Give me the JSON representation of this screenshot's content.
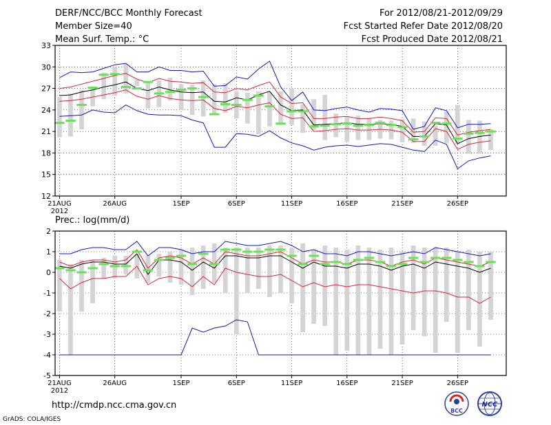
{
  "header": {
    "title": "DERF/NCC/BCC Monthly Forecast",
    "member_size": "Member Size=40",
    "variable": "Mean Surf. Temp.: °C",
    "period": "For 2012/08/21-2012/09/29",
    "started": "Fcst Started Refer Date 2012/08/20",
    "produced": "Fcst Produced Date 2012/08/21"
  },
  "footer": {
    "url": "http://cmdp.ncc.cma.gov.cn",
    "credit": "GrADS: COLA/IGES",
    "logo_bcc": "BCC",
    "logo_ncc": "NCC"
  },
  "colors": {
    "envelope": "#1010d0",
    "spread": "#e02030",
    "mean": "#000000",
    "box": "#d4d4d4",
    "median": "#66e255"
  },
  "chart_data": [
    {
      "type": "box",
      "title": "Mean Surf. Temp.: °C",
      "ylim": [
        12,
        33
      ],
      "yticks": [
        12,
        15,
        18,
        21,
        24,
        27,
        30,
        33
      ],
      "x_tick_labels": [
        "21AUG",
        "26AUG",
        "1SEP",
        "6SEP",
        "11SEP",
        "16SEP",
        "21SEP",
        "26SEP"
      ],
      "x_tick_days": [
        0,
        5,
        11,
        16,
        21,
        26,
        31,
        36
      ],
      "x_sublabel": "2012",
      "days": 40,
      "box_low": [
        20.2,
        20.3,
        21.3,
        24.5,
        25.5,
        26.0,
        26.3,
        27.3,
        24.2,
        24.4,
        25.3,
        24.0,
        23.3,
        23.1,
        23.3,
        23.6,
        22.8,
        22.1,
        20.6,
        21.7,
        21.9,
        21.9,
        20.8,
        21.2,
        19.8,
        20.2,
        19.6,
        19.8,
        19.8,
        20.0,
        19.9,
        19.5,
        19.4,
        19.0,
        19.0,
        19.4,
        19.2,
        17.9,
        17.9,
        18.4
      ],
      "box_high": [
        25.8,
        26.3,
        26.8,
        27.2,
        29.2,
        30.0,
        30.4,
        28.2,
        27.8,
        28.1,
        28.5,
        27.6,
        27.5,
        28.1,
        27.6,
        27.7,
        26.6,
        26.4,
        26.6,
        26.5,
        26.6,
        27.0,
        24.8,
        25.5,
        26.1,
        23.5,
        23.1,
        23.2,
        22.9,
        22.6,
        22.5,
        22.7,
        22.8,
        22.4,
        21.8,
        23.8,
        24.7,
        22.6,
        22.5,
        21.3
      ],
      "median": [
        22.2,
        22.5,
        24.7,
        27.1,
        28.9,
        29.0,
        27.2,
        27.0,
        27.9,
        26.3,
        26.5,
        26.8,
        27.0,
        25.8,
        23.4,
        24.8,
        24.7,
        25.4,
        26.0,
        24.5,
        22.1,
        23.8,
        23.8,
        21.7,
        21.8,
        22.0,
        22.1,
        21.8,
        21.9,
        22.2,
        21.9,
        21.6,
        19.9,
        20.3,
        22.2,
        22.1,
        20.0,
        20.7,
        20.8,
        21.0
      ],
      "series": [
        {
          "name": "max",
          "color": "#1010d0",
          "values": [
            28.5,
            29.3,
            29.2,
            29.3,
            29.8,
            30.3,
            30.5,
            29.3,
            29.3,
            30.0,
            29.5,
            29.5,
            29.3,
            29.4,
            27.3,
            27.4,
            28.6,
            28.3,
            29.7,
            30.8,
            27.2,
            25.3,
            26.5,
            24.0,
            23.9,
            24.2,
            24.4,
            24.0,
            23.7,
            24.2,
            24.1,
            23.9,
            21.3,
            21.7,
            24.3,
            23.9,
            21.5,
            22.0,
            22.0,
            22.1
          ]
        },
        {
          "name": "upper",
          "color": "#e02030",
          "values": [
            27.0,
            27.2,
            27.6,
            28.0,
            28.4,
            28.8,
            29.1,
            28.3,
            27.8,
            28.4,
            28.0,
            27.9,
            27.7,
            27.8,
            26.5,
            26.4,
            27.0,
            26.8,
            27.4,
            27.9,
            25.8,
            24.9,
            25.0,
            22.8,
            22.8,
            23.0,
            23.1,
            22.8,
            22.8,
            23.0,
            22.8,
            22.5,
            20.9,
            21.0,
            22.9,
            22.8,
            20.5,
            20.9,
            21.1,
            21.3
          ]
        },
        {
          "name": "mean",
          "color": "#000000",
          "values": [
            26.0,
            26.1,
            26.5,
            26.8,
            27.2,
            27.5,
            27.9,
            27.0,
            26.7,
            27.2,
            26.8,
            26.5,
            26.4,
            26.5,
            25.2,
            25.1,
            25.7,
            25.4,
            26.1,
            26.6,
            24.7,
            23.9,
            24.0,
            21.9,
            22.0,
            22.1,
            22.2,
            22.0,
            22.0,
            22.1,
            22.0,
            21.7,
            20.3,
            20.3,
            22.1,
            21.9,
            19.3,
            20.0,
            20.3,
            20.5
          ]
        },
        {
          "name": "lower",
          "color": "#e02030",
          "values": [
            25.2,
            25.3,
            25.5,
            25.8,
            26.1,
            26.4,
            26.8,
            25.9,
            25.5,
            26.0,
            25.6,
            25.4,
            25.3,
            25.4,
            24.2,
            23.9,
            24.5,
            24.3,
            24.7,
            25.0,
            23.4,
            22.8,
            22.9,
            21.0,
            21.1,
            21.3,
            21.4,
            21.2,
            21.2,
            21.3,
            21.2,
            20.9,
            19.6,
            19.6,
            21.4,
            21.0,
            18.5,
            19.2,
            19.5,
            19.7
          ]
        },
        {
          "name": "min",
          "color": "#1010d0",
          "values": [
            23.1,
            23.2,
            23.3,
            24.0,
            23.7,
            23.6,
            24.7,
            23.9,
            23.4,
            23.3,
            23.3,
            23.2,
            22.6,
            22.2,
            18.8,
            18.8,
            20.7,
            20.6,
            20.3,
            21.1,
            20.1,
            19.4,
            19.0,
            18.4,
            18.8,
            19.0,
            19.1,
            18.9,
            19.1,
            19.3,
            19.2,
            18.8,
            18.4,
            18.2,
            19.8,
            19.2,
            15.8,
            16.9,
            17.3,
            17.6
          ]
        }
      ]
    },
    {
      "type": "box",
      "title": "Prec.: log(mm/d)",
      "ylim": [
        -5,
        2
      ],
      "yticks": [
        -5,
        -4,
        -3,
        -2,
        -1,
        0,
        1,
        2
      ],
      "x_tick_labels": [
        "21AUG",
        "26AUG",
        "1SEP",
        "6SEP",
        "11SEP",
        "16SEP",
        "21SEP",
        "26SEP"
      ],
      "x_tick_days": [
        0,
        5,
        11,
        16,
        21,
        26,
        31,
        36
      ],
      "x_sublabel": "2012",
      "days": 40,
      "box_low": [
        -1.9,
        -4.0,
        -1.9,
        -1.5,
        -0.3,
        -0.3,
        -0.1,
        -0.3,
        -0.5,
        -0.2,
        -0.5,
        -0.6,
        -1.1,
        -0.8,
        -0.5,
        -1.0,
        -3.0,
        -1.0,
        -0.8,
        -1.2,
        -1.0,
        -1.5,
        -2.9,
        -2.5,
        -2.6,
        -4.0,
        -3.8,
        -4.0,
        -4.0,
        -3.7,
        -4.0,
        -3.5,
        -2.8,
        -3.1,
        -3.9,
        -2.4,
        -3.9,
        -2.8,
        -3.6,
        -2.3
      ],
      "box_high": [
        0.6,
        0.4,
        0.6,
        0.6,
        0.7,
        0.8,
        0.8,
        0.9,
        0.8,
        0.9,
        1.0,
        1.1,
        1.2,
        1.3,
        1.4,
        1.2,
        1.2,
        1.2,
        1.2,
        1.3,
        1.3,
        1.2,
        1.4,
        1.1,
        1.3,
        1.2,
        1.1,
        1.3,
        1.2,
        1.1,
        1.2,
        1.0,
        1.3,
        1.2,
        1.2,
        1.2,
        1.0,
        1.1,
        1.0,
        1.0
      ],
      "median": [
        0.2,
        0.1,
        0.0,
        0.2,
        0.4,
        0.3,
        0.3,
        1.0,
        0.1,
        0.6,
        0.7,
        0.8,
        0.4,
        0.9,
        0.4,
        1.1,
        1.1,
        1.0,
        1.0,
        1.1,
        1.1,
        0.8,
        0.4,
        0.8,
        0.4,
        0.5,
        0.4,
        0.6,
        0.7,
        0.5,
        0.3,
        0.4,
        0.7,
        0.5,
        0.7,
        0.7,
        0.6,
        0.5,
        0.3,
        0.5
      ],
      "series": [
        {
          "name": "max",
          "color": "#1010d0",
          "values": [
            0.9,
            0.9,
            1.1,
            1.2,
            1.2,
            1.1,
            1.1,
            1.5,
            0.8,
            1.2,
            1.2,
            1.1,
            0.9,
            1.0,
            1.0,
            1.5,
            1.4,
            1.3,
            1.3,
            1.4,
            1.5,
            1.3,
            1.0,
            1.1,
            0.9,
            0.9,
            0.8,
            1.0,
            1.0,
            0.9,
            0.8,
            0.9,
            1.0,
            0.9,
            1.2,
            1.1,
            1.0,
            0.9,
            0.8,
            0.9
          ]
        },
        {
          "name": "upper",
          "color": "#e02030",
          "values": [
            0.5,
            0.3,
            0.5,
            0.6,
            0.6,
            0.5,
            0.6,
            1.1,
            0.2,
            0.7,
            0.8,
            0.7,
            0.4,
            0.7,
            0.4,
            1.0,
            0.9,
            0.8,
            0.8,
            0.9,
            1.0,
            0.7,
            0.4,
            0.6,
            0.5,
            0.5,
            0.4,
            0.6,
            0.6,
            0.5,
            0.3,
            0.5,
            0.6,
            0.4,
            0.7,
            0.6,
            0.5,
            0.4,
            0.3,
            0.5
          ]
        },
        {
          "name": "mean",
          "color": "#000000",
          "values": [
            0.3,
            0.2,
            0.4,
            0.5,
            0.5,
            0.4,
            0.4,
            0.9,
            -0.1,
            0.6,
            0.6,
            0.5,
            0.1,
            0.5,
            0.2,
            0.8,
            0.8,
            0.7,
            0.7,
            0.8,
            0.8,
            0.5,
            0.2,
            0.5,
            0.3,
            0.3,
            0.2,
            0.4,
            0.4,
            0.3,
            0.1,
            0.3,
            0.4,
            0.2,
            0.5,
            0.4,
            0.3,
            0.2,
            0.0,
            0.2
          ]
        },
        {
          "name": "lower",
          "color": "#e02030",
          "values": [
            -0.3,
            -0.8,
            -0.5,
            -0.3,
            -0.3,
            -0.2,
            -0.2,
            0.3,
            -0.6,
            -0.3,
            -0.2,
            -0.3,
            -0.7,
            -0.2,
            -0.6,
            0.2,
            0.0,
            -0.1,
            -0.2,
            -0.2,
            -0.1,
            -0.4,
            -0.7,
            -0.5,
            -0.7,
            -0.6,
            -0.7,
            -0.6,
            -0.6,
            -0.7,
            -0.8,
            -0.9,
            -1.0,
            -0.9,
            -0.9,
            -1.0,
            -1.2,
            -1.2,
            -1.5,
            -1.2
          ]
        },
        {
          "name": "min",
          "color": "#1010d0",
          "values": [
            -4.0,
            -4.0,
            -4.0,
            -4.0,
            -4.0,
            -4.0,
            -4.0,
            -4.0,
            -4.0,
            -4.0,
            -4.0,
            -4.0,
            -2.7,
            -2.9,
            -2.7,
            -2.6,
            -2.3,
            -2.4,
            -4.0,
            -4.0,
            -4.0,
            -4.0,
            -4.0,
            -4.0,
            -4.0,
            -4.0,
            -4.0,
            -4.0,
            -4.0,
            -4.0,
            -4.0,
            -4.0,
            -4.0,
            -4.0,
            -4.0,
            -4.0,
            -4.0,
            -4.0,
            -4.0,
            -4.0
          ]
        }
      ]
    }
  ]
}
